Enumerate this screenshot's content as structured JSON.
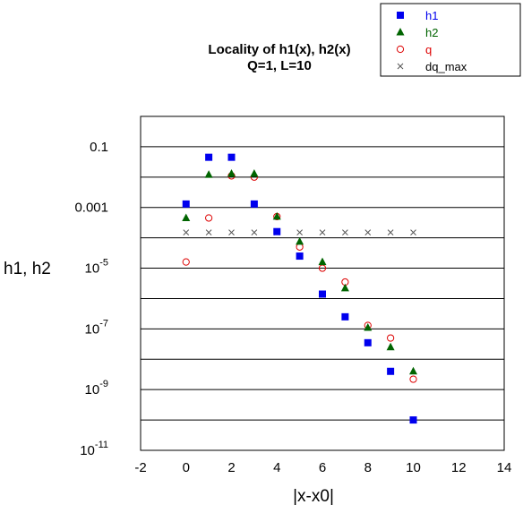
{
  "chart_data": {
    "type": "scatter",
    "title_lines": [
      "Locality of h1(x), h2(x)",
      "Q=1, L=10"
    ],
    "xlabel": "|x-x0|",
    "ylabel": "h1, h2",
    "xlim": [
      -2,
      14
    ],
    "ylim": [
      1e-11,
      1
    ],
    "y_scale": "log",
    "grid": "horizontal",
    "legend_position": "top-right",
    "x_ticks": [
      "-2",
      "0",
      "2",
      "4",
      "6",
      "8",
      "10",
      "12",
      "14"
    ],
    "y_ticks": [
      {
        "value": 0.1,
        "base": "0.1",
        "exp": ""
      },
      {
        "value": 0.001,
        "base": "0.001",
        "exp": ""
      },
      {
        "value": 1e-05,
        "base": "10",
        "exp": "-5"
      },
      {
        "value": 1e-07,
        "base": "10",
        "exp": "-7"
      },
      {
        "value": 1e-09,
        "base": "10",
        "exp": "-9"
      },
      {
        "value": 1e-11,
        "base": "10",
        "exp": "-11"
      }
    ],
    "series": [
      {
        "name": "h1",
        "marker": "square",
        "color": "#0000ee",
        "x": [
          0,
          1,
          2,
          3,
          4,
          5,
          6,
          7,
          8,
          9,
          10
        ],
        "y": [
          0.0013,
          0.045,
          0.045,
          0.0013,
          0.00016,
          2.5e-05,
          1.4e-06,
          2.5e-07,
          3.5e-08,
          4e-09,
          1e-10
        ]
      },
      {
        "name": "h2",
        "marker": "triangle",
        "color": "#006400",
        "x": [
          0,
          1,
          2,
          3,
          4,
          5,
          6,
          7,
          8,
          9,
          10
        ],
        "y": [
          0.00045,
          0.012,
          0.013,
          0.013,
          0.0005,
          7.5e-05,
          1.6e-05,
          2.2e-06,
          1.1e-07,
          2.5e-08,
          4e-09
        ]
      },
      {
        "name": "q",
        "marker": "circle",
        "color": "#dd0000",
        "x": [
          0,
          1,
          2,
          3,
          4,
          5,
          6,
          7,
          8,
          9,
          10
        ],
        "y": [
          1.6e-05,
          0.00045,
          0.011,
          0.01,
          0.0005,
          5e-05,
          1e-05,
          3.5e-06,
          1.3e-07,
          5e-08,
          2.2e-09
        ]
      },
      {
        "name": "dq_max",
        "marker": "cross",
        "color": "#555555",
        "x": [
          0,
          1,
          2,
          3,
          4,
          5,
          6,
          7,
          8,
          9,
          10
        ],
        "y": [
          0.00015,
          0.00015,
          0.00015,
          0.00015,
          0.00015,
          0.00015,
          0.00015,
          0.00015,
          0.00015,
          0.00015,
          0.00015
        ]
      }
    ]
  }
}
